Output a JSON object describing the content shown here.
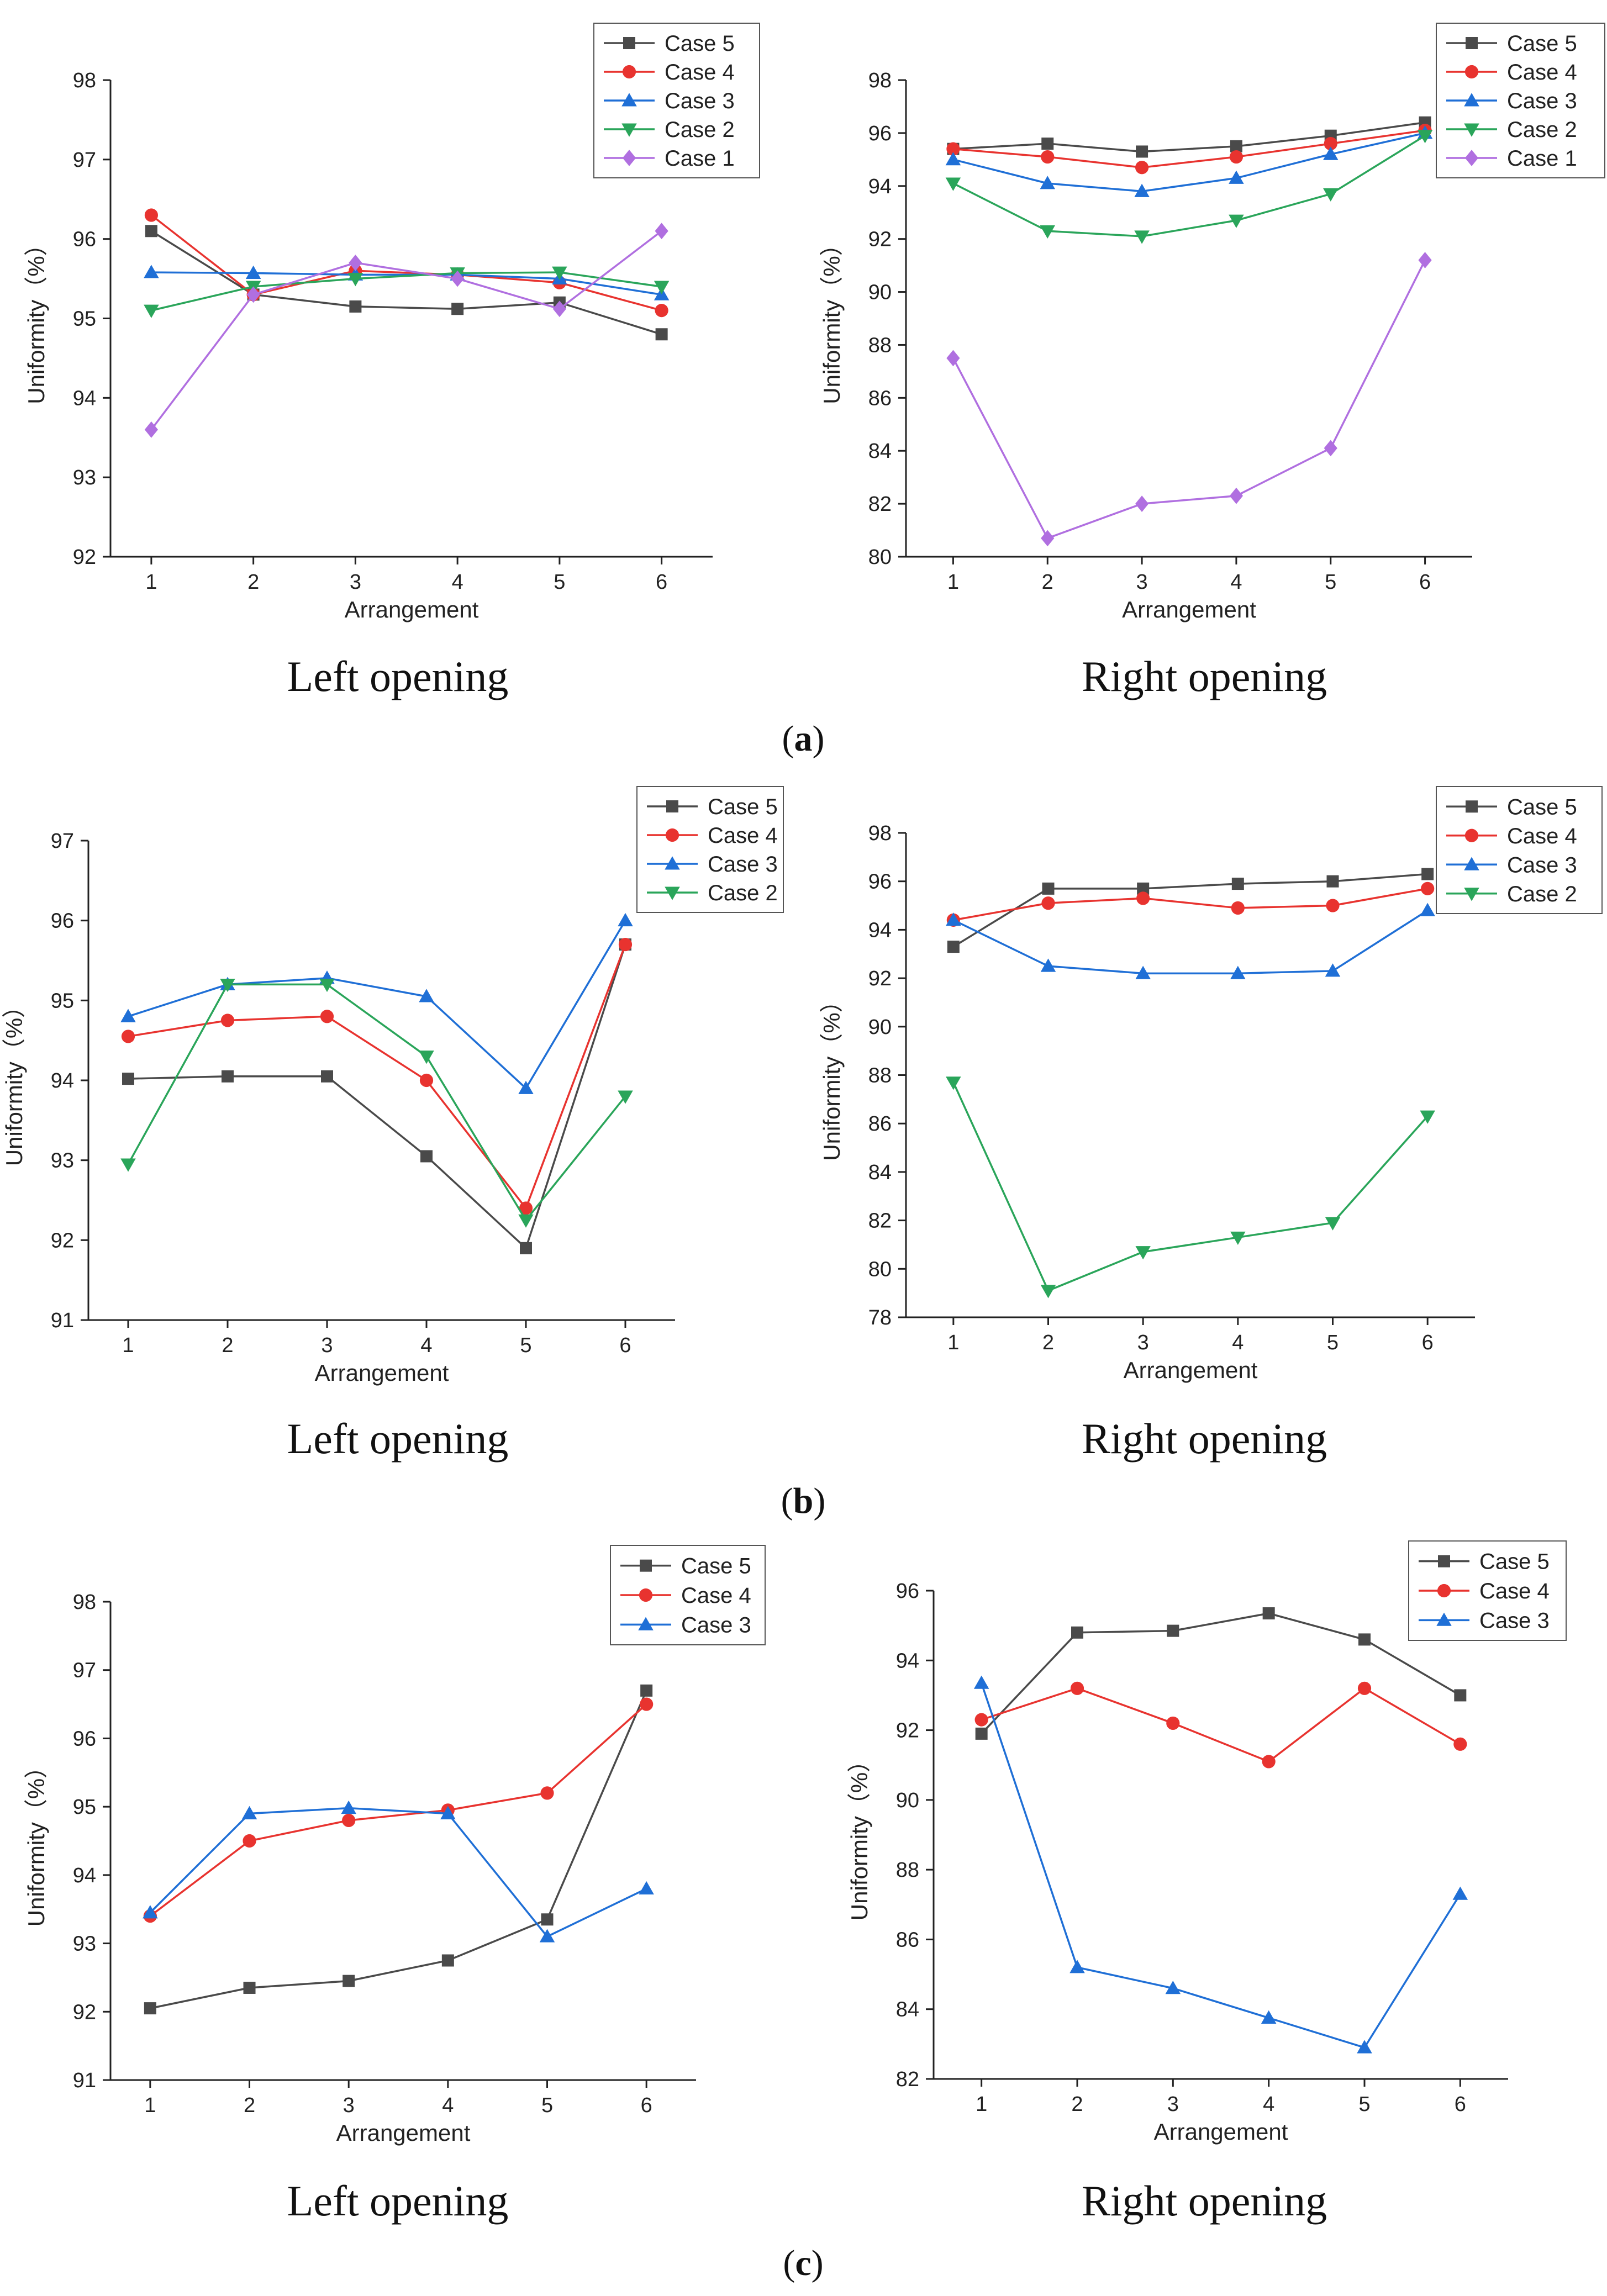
{
  "panels": [
    {
      "label": "a",
      "left_caption": "Left opening",
      "right_caption": "Right opening"
    },
    {
      "label": "b",
      "left_caption": "Left opening",
      "right_caption": "Right opening"
    },
    {
      "label": "c",
      "left_caption": "Left opening",
      "right_caption": "Right opening"
    }
  ],
  "series_styles": {
    "Case 5": {
      "color": "#4a4a4a",
      "marker": "square"
    },
    "Case 4": {
      "color": "#e8332f",
      "marker": "circle"
    },
    "Case 3": {
      "color": "#1f6fd6",
      "marker": "triangle-up"
    },
    "Case 2": {
      "color": "#2aa55a",
      "marker": "triangle-down"
    },
    "Case 1": {
      "color": "#b06fe0",
      "marker": "diamond"
    }
  },
  "chart_data": [
    {
      "id": "a-left",
      "type": "line",
      "panel": "a",
      "caption": "Left opening",
      "xlabel": "Arrangement",
      "ylabel": "Uniformity（%）",
      "x": [
        1,
        2,
        3,
        4,
        5,
        6
      ],
      "xlim": [
        0.6,
        6.5
      ],
      "ylim": [
        92,
        98
      ],
      "yticks": [
        92,
        93,
        94,
        95,
        96,
        97,
        98
      ],
      "legend": "top-right",
      "series": [
        {
          "name": "Case 5",
          "values": [
            96.1,
            95.3,
            95.15,
            95.12,
            95.2,
            94.8
          ]
        },
        {
          "name": "Case 4",
          "values": [
            96.3,
            95.3,
            95.6,
            95.55,
            95.45,
            95.1
          ]
        },
        {
          "name": "Case 3",
          "values": [
            95.58,
            95.57,
            95.55,
            95.55,
            95.5,
            95.3
          ]
        },
        {
          "name": "Case 2",
          "values": [
            95.1,
            95.4,
            95.5,
            95.57,
            95.58,
            95.4
          ]
        },
        {
          "name": "Case 1",
          "values": [
            93.6,
            95.3,
            95.7,
            95.5,
            95.12,
            96.1
          ]
        }
      ]
    },
    {
      "id": "a-right",
      "type": "line",
      "panel": "a",
      "caption": "Right opening",
      "xlabel": "Arrangement",
      "ylabel": "Uniformity（%）",
      "x": [
        1,
        2,
        3,
        4,
        5,
        6
      ],
      "xlim": [
        0.5,
        6.5
      ],
      "ylim": [
        80,
        98
      ],
      "yticks": [
        80,
        82,
        84,
        86,
        88,
        90,
        92,
        94,
        96,
        98
      ],
      "legend": "top-right",
      "series": [
        {
          "name": "Case 5",
          "values": [
            95.4,
            95.6,
            95.3,
            95.5,
            95.9,
            96.4
          ]
        },
        {
          "name": "Case 4",
          "values": [
            95.4,
            95.1,
            94.7,
            95.1,
            95.6,
            96.1
          ]
        },
        {
          "name": "Case 3",
          "values": [
            95.0,
            94.1,
            93.8,
            94.3,
            95.2,
            96.0
          ]
        },
        {
          "name": "Case 2",
          "values": [
            94.1,
            92.3,
            92.1,
            92.7,
            93.7,
            95.9
          ]
        },
        {
          "name": "Case 1",
          "values": [
            87.5,
            80.7,
            82.0,
            82.3,
            84.1,
            91.2
          ]
        }
      ]
    },
    {
      "id": "b-left",
      "type": "line",
      "panel": "b",
      "caption": "Left opening",
      "xlabel": "Arrangement",
      "ylabel": "Uniformity（%）",
      "x": [
        1,
        2,
        3,
        4,
        5,
        6
      ],
      "xlim": [
        0.6,
        6.5
      ],
      "ylim": [
        91,
        97
      ],
      "yticks": [
        91,
        92,
        93,
        94,
        95,
        96,
        97
      ],
      "legend": "top-right",
      "series": [
        {
          "name": "Case 5",
          "values": [
            94.02,
            94.05,
            94.05,
            93.05,
            91.9,
            95.7
          ]
        },
        {
          "name": "Case 4",
          "values": [
            94.55,
            94.75,
            94.8,
            94.0,
            92.4,
            95.7
          ]
        },
        {
          "name": "Case 3",
          "values": [
            94.8,
            95.2,
            95.28,
            95.05,
            93.9,
            96.0
          ]
        },
        {
          "name": "Case 2",
          "values": [
            92.95,
            95.2,
            95.2,
            94.3,
            92.25,
            93.8
          ]
        }
      ]
    },
    {
      "id": "b-right",
      "type": "line",
      "panel": "b",
      "caption": "Right opening",
      "xlabel": "Arrangement",
      "ylabel": "Uniformity（%）",
      "x": [
        1,
        2,
        3,
        4,
        5,
        6
      ],
      "xlim": [
        0.5,
        6.5
      ],
      "ylim": [
        78,
        98
      ],
      "yticks": [
        78,
        80,
        82,
        84,
        86,
        88,
        90,
        92,
        94,
        96,
        98
      ],
      "legend": "top-right",
      "series": [
        {
          "name": "Case 5",
          "values": [
            93.3,
            95.7,
            95.7,
            95.9,
            96.0,
            96.3
          ]
        },
        {
          "name": "Case 4",
          "values": [
            94.4,
            95.1,
            95.3,
            94.9,
            95.0,
            95.7
          ]
        },
        {
          "name": "Case 3",
          "values": [
            94.4,
            92.5,
            92.2,
            92.2,
            92.3,
            94.8
          ]
        },
        {
          "name": "Case 2",
          "values": [
            87.7,
            79.1,
            80.7,
            81.3,
            81.9,
            86.3
          ]
        }
      ]
    },
    {
      "id": "c-left",
      "type": "line",
      "panel": "c",
      "caption": "Left opening",
      "xlabel": "Arrangement",
      "ylabel": "Uniformity（%）",
      "x": [
        1,
        2,
        3,
        4,
        5,
        6
      ],
      "xlim": [
        0.6,
        6.5
      ],
      "ylim": [
        91,
        98
      ],
      "yticks": [
        91,
        92,
        93,
        94,
        95,
        96,
        97,
        98
      ],
      "legend": "top-right",
      "series": [
        {
          "name": "Case 5",
          "values": [
            92.05,
            92.35,
            92.45,
            92.75,
            93.35,
            96.7
          ]
        },
        {
          "name": "Case 4",
          "values": [
            93.4,
            94.5,
            94.8,
            94.95,
            95.2,
            96.5
          ]
        },
        {
          "name": "Case 3",
          "values": [
            93.45,
            94.9,
            94.98,
            94.9,
            93.1,
            93.8
          ]
        }
      ]
    },
    {
      "id": "c-right",
      "type": "line",
      "panel": "c",
      "caption": "Right opening",
      "xlabel": "Arrangement",
      "ylabel": "Uniformity（%）",
      "x": [
        1,
        2,
        3,
        4,
        5,
        6
      ],
      "xlim": [
        0.5,
        6.5
      ],
      "ylim": [
        82,
        96
      ],
      "yticks": [
        82,
        84,
        86,
        88,
        90,
        92,
        94,
        96
      ],
      "legend": "top-right",
      "series": [
        {
          "name": "Case 5",
          "values": [
            91.9,
            94.8,
            94.85,
            95.35,
            94.6,
            93.0
          ]
        },
        {
          "name": "Case 4",
          "values": [
            92.3,
            93.2,
            92.2,
            91.1,
            93.2,
            91.6
          ]
        },
        {
          "name": "Case 3",
          "values": [
            93.35,
            85.2,
            84.6,
            83.75,
            82.9,
            87.3
          ]
        }
      ]
    }
  ]
}
